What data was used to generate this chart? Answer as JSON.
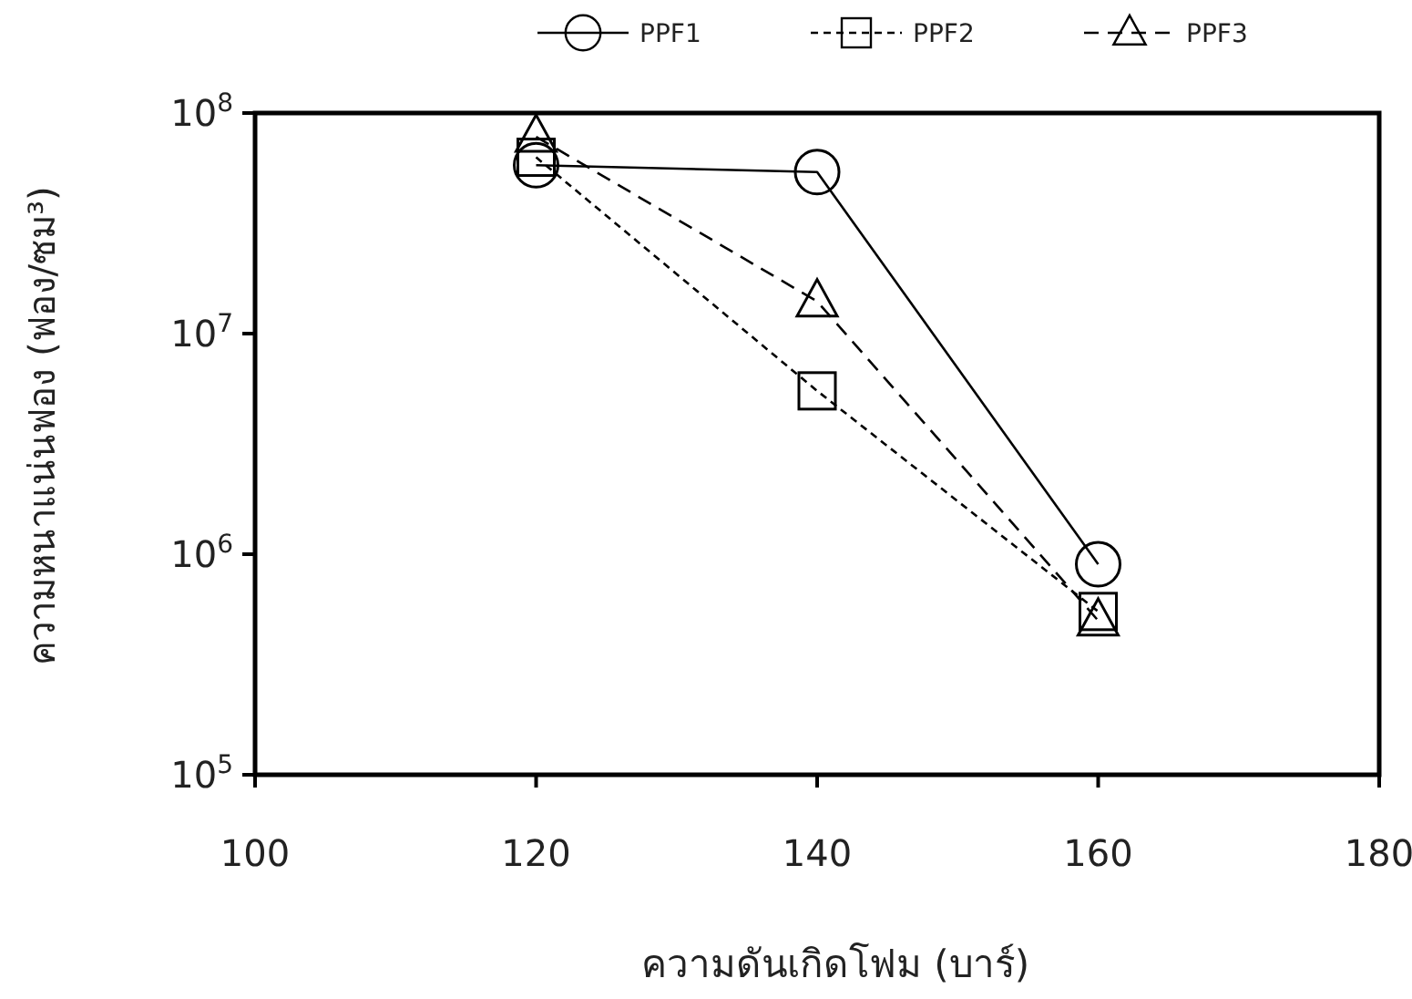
{
  "chart_data": {
    "type": "line",
    "xlabel": "ความดันเกิดโฟม (บาร์)",
    "ylabel": "ความหนาแน่นฟอง (ฟอง/ซม³)",
    "x": [
      120,
      140,
      160
    ],
    "series": [
      {
        "name": "PPF1",
        "color": "#000000",
        "marker": "circle",
        "line_style": "solid",
        "values": [
          58000000,
          54000000,
          900000
        ]
      },
      {
        "name": "PPF2",
        "color": "#000000",
        "marker": "square",
        "line_style": "dotted",
        "values": [
          63000000,
          5500000,
          550000
        ]
      },
      {
        "name": "PPF3",
        "color": "#000000",
        "marker": "triangle",
        "line_style": "dashed",
        "values": [
          78000000,
          14000000,
          500000
        ]
      }
    ],
    "log": "y",
    "xlim": [
      100,
      180
    ],
    "xticks": [
      100,
      120,
      140,
      160,
      180
    ],
    "ylim": [
      100000,
      100000000
    ],
    "yticks": [
      {
        "value": 100000,
        "label": "10$^{5}$"
      },
      {
        "value": 1000000,
        "label": "10$^{6}$"
      },
      {
        "value": 10000000,
        "label": "10$^{7}$"
      },
      {
        "value": 100000000,
        "label": "10$^{8}$"
      }
    ],
    "grid": false,
    "legend": "top"
  }
}
